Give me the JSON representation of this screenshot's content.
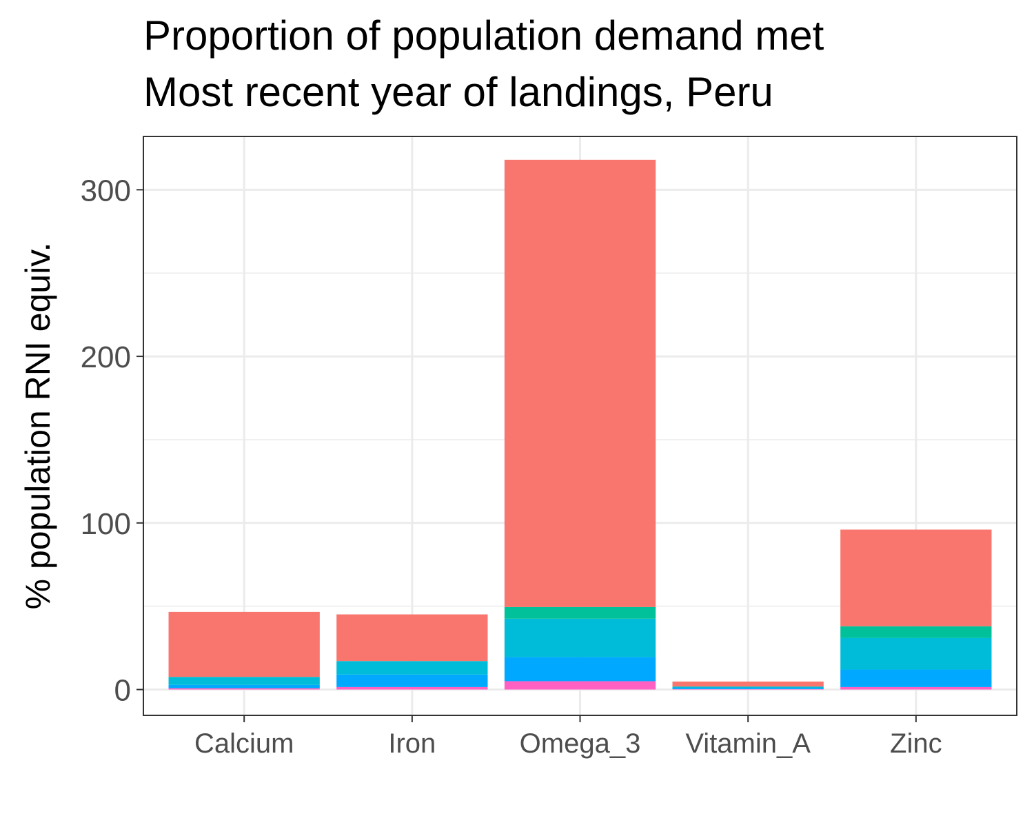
{
  "chart_data": {
    "type": "bar",
    "stacked": true,
    "title_lines": [
      "Proportion of population demand met",
      "Most recent year of landings, Peru"
    ],
    "xlabel": "",
    "ylabel": "% population RNI equiv.",
    "categories": [
      "Calcium",
      "Iron",
      "Omega_3",
      "Vitamin_A",
      "Zinc"
    ],
    "ylim": [
      -15.5,
      332
    ],
    "y_ticks": [
      0,
      100,
      200,
      300
    ],
    "grid": true,
    "legend": "none",
    "series": [
      {
        "color": "#FF61C3",
        "values": [
          0.8,
          1.5,
          5.0,
          0.2,
          1.5
        ]
      },
      {
        "color": "#00A9FF",
        "values": [
          2.0,
          7.5,
          14.5,
          0.8,
          10.5
        ]
      },
      {
        "color": "#00BCD8",
        "values": [
          4.7,
          8.0,
          23.0,
          0.8,
          19.0
        ]
      },
      {
        "color": "#00C19A",
        "values": [
          0.1,
          0.1,
          7.0,
          0.0,
          7.0
        ]
      },
      {
        "color": "#F8766D",
        "values": [
          39.0,
          28.0,
          268.5,
          3.0,
          58.0
        ]
      }
    ]
  }
}
